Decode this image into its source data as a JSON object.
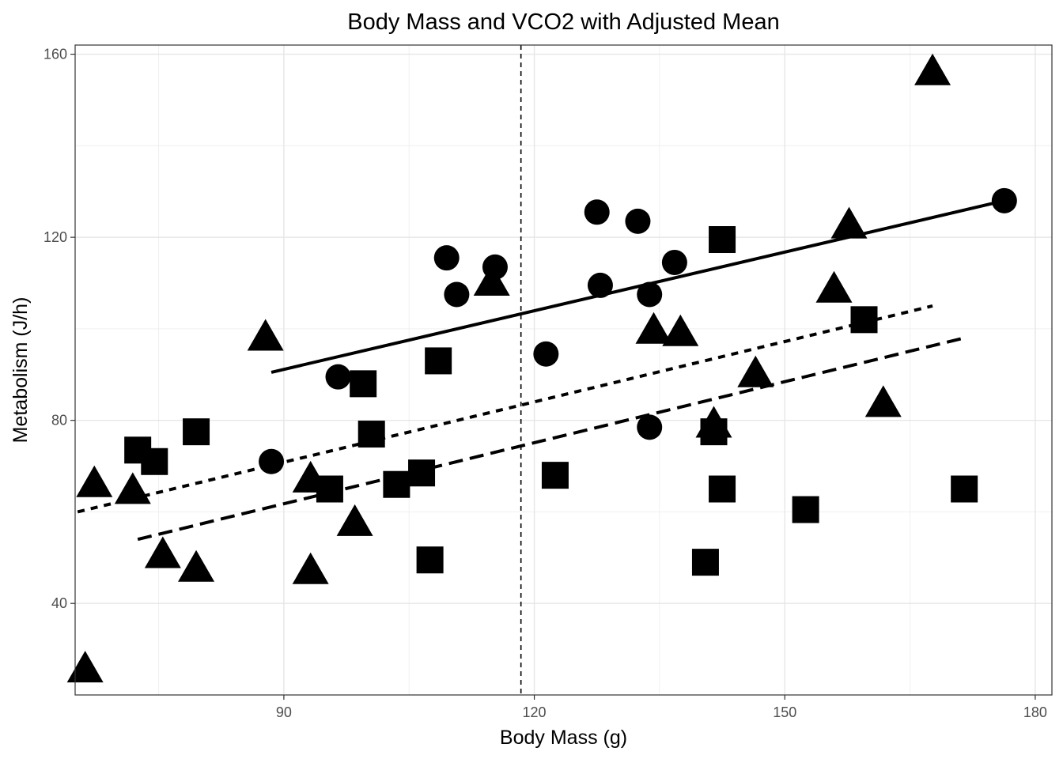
{
  "chart_data": {
    "type": "scatter",
    "title": "Body Mass and VCO2 with Adjusted Mean",
    "xlabel": "Body Mass (g)",
    "ylabel": "Metabolism (J/h)",
    "xlim": [
      65,
      182
    ],
    "ylim": [
      20,
      162
    ],
    "xticks": [
      90,
      120,
      150,
      180
    ],
    "yticks": [
      40,
      80,
      120,
      160
    ],
    "x_minor_grid": [
      75,
      105,
      135,
      165
    ],
    "y_minor_grid": [
      60,
      100,
      140
    ],
    "grid": true,
    "legend": "none",
    "reference_line": {
      "axis": "x",
      "value": 118.4,
      "style": "dashed"
    },
    "series": [
      {
        "marker": "circle",
        "points": [
          [
            88.5,
            71
          ],
          [
            96.5,
            89.5
          ],
          [
            109.5,
            115.5
          ],
          [
            110.7,
            107.5
          ],
          [
            115.3,
            113.5
          ],
          [
            121.4,
            94.5
          ],
          [
            127.5,
            125.5
          ],
          [
            127.9,
            109.5
          ],
          [
            132.4,
            123.5
          ],
          [
            133.8,
            107.5
          ],
          [
            133.8,
            78.5
          ],
          [
            136.8,
            114.5
          ],
          [
            176.3,
            128
          ]
        ],
        "fit_line": {
          "style": "solid",
          "x": [
            88.5,
            176.3
          ],
          "y": [
            90.5,
            128
          ]
        }
      },
      {
        "marker": "square",
        "points": [
          [
            72.5,
            73.5
          ],
          [
            74.5,
            71
          ],
          [
            79.5,
            77.5
          ],
          [
            95.5,
            65
          ],
          [
            99.5,
            88
          ],
          [
            100.5,
            77
          ],
          [
            103.5,
            66
          ],
          [
            106.5,
            68.5
          ],
          [
            107.5,
            49.5
          ],
          [
            108.5,
            93
          ],
          [
            122.5,
            68
          ],
          [
            140.5,
            49
          ],
          [
            141.5,
            77.5
          ],
          [
            142.5,
            65
          ],
          [
            142.5,
            119.5
          ],
          [
            152.5,
            60.5
          ],
          [
            159.5,
            102
          ],
          [
            171.5,
            65
          ]
        ],
        "fit_line": {
          "style": "dashed",
          "x": [
            72.5,
            171.5
          ],
          "y": [
            54,
            98
          ]
        }
      },
      {
        "marker": "triangle",
        "points": [
          [
            66.2,
            25.5
          ],
          [
            67.3,
            66
          ],
          [
            71.9,
            64.5
          ],
          [
            75.5,
            50.5
          ],
          [
            79.5,
            47.5
          ],
          [
            87.8,
            98
          ],
          [
            93.2,
            67
          ],
          [
            93.2,
            47
          ],
          [
            98.5,
            57.5
          ],
          [
            114.9,
            110
          ],
          [
            134.3,
            99.5
          ],
          [
            137.5,
            99
          ],
          [
            141.5,
            79
          ],
          [
            146.5,
            90
          ],
          [
            155.9,
            108.5
          ],
          [
            157.7,
            122.5
          ],
          [
            161.8,
            83.5
          ],
          [
            167.7,
            156
          ]
        ],
        "fit_line": {
          "style": "dotted",
          "x": [
            65.3,
            167.7
          ],
          "y": [
            60,
            105
          ]
        }
      }
    ]
  }
}
